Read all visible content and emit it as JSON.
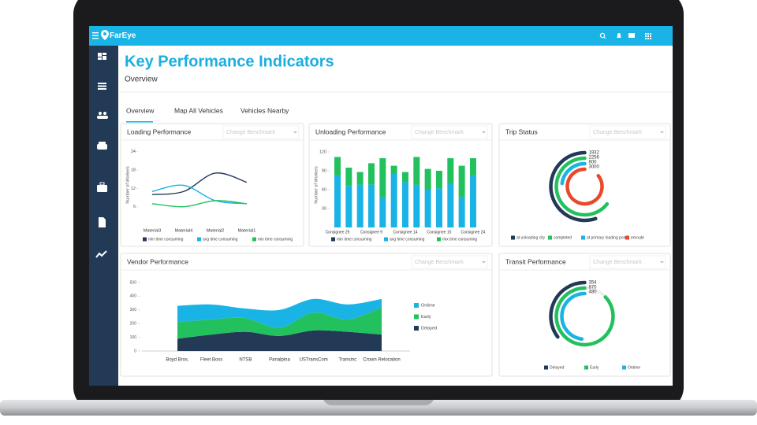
{
  "app": {
    "logo": "FarEye"
  },
  "page": {
    "title": "Key Performance Indicators",
    "subtitle": "Overview"
  },
  "tabs": [
    "Overview",
    "Map All Vehicles",
    "Vehicles Nearby"
  ],
  "chart_data": [
    {
      "type": "line",
      "title": "Loading Performance",
      "benchmark": "Change Benchmark",
      "y_label": "Number of Workers",
      "categories": [
        "Material3",
        "Material4",
        "Material2",
        "Material1"
      ],
      "ylim": [
        0,
        26
      ],
      "yticks": [
        6,
        12,
        18,
        24
      ],
      "series": [
        {
          "name": "min time consuming",
          "color": "#233a57",
          "values": [
            10,
            11,
            17,
            14
          ]
        },
        {
          "name": "avg time consuming",
          "color": "#1ab3e6",
          "values": [
            11,
            13,
            8,
            7
          ]
        },
        {
          "name": "mix time consuming",
          "color": "#22c15e",
          "values": [
            7,
            6,
            8,
            7
          ]
        }
      ]
    },
    {
      "type": "stacked_bar",
      "title": "Unloading Performance",
      "benchmark": "Change Benchmark",
      "y_label": "Number of Workers",
      "categories": [
        "Consignee 29",
        null,
        null,
        "Consignee 9",
        null,
        null,
        "Consignee 14",
        null,
        null,
        "Consignee 15",
        null,
        null,
        "Consignee 24"
      ],
      "ylim": [
        0,
        130
      ],
      "yticks": [
        30,
        60,
        90,
        120
      ],
      "series": [
        {
          "name": "min time consuming",
          "color": "#233a57",
          "values": [
            0,
            0,
            0,
            0,
            0,
            0,
            0,
            0,
            0,
            0,
            0,
            0,
            0
          ]
        },
        {
          "name": "avg time consuming",
          "color": "#1ab3e6",
          "values": [
            82,
            66,
            68,
            68,
            48,
            85,
            72,
            68,
            60,
            62,
            70,
            48,
            82
          ]
        },
        {
          "name": "mix time consuming",
          "color": "#22c15e",
          "values": [
            30,
            29,
            20,
            34,
            62,
            13,
            16,
            44,
            33,
            28,
            40,
            50,
            28
          ]
        }
      ]
    },
    {
      "type": "radial",
      "title": "Trip Status",
      "benchmark": "Change Benchmark",
      "ylim": [
        0,
        3500
      ],
      "categories": [
        "at unloading city",
        "completed",
        "at primary loading point",
        "enroute"
      ],
      "colors": [
        "#233a57",
        "#22c15e",
        "#1ab3e6",
        "#e8492b"
      ],
      "values": [
        1932,
        2256,
        800,
        3000
      ]
    },
    {
      "type": "stacked_area",
      "title": "Vendor Performance",
      "benchmark": "Change Benchmark",
      "categories": [
        "Boyd Bros.",
        "Fleet Boss",
        "NTSB",
        "Panalpina",
        "USTransCom",
        "Transinc",
        "Crown Relocation"
      ],
      "ylim": [
        0,
        500
      ],
      "yticks": [
        0,
        100,
        200,
        300,
        400,
        500
      ],
      "series": [
        {
          "name": "Ontime",
          "color": "#1ab3e6",
          "values": [
            120,
            110,
            70,
            130,
            100,
            110,
            60
          ]
        },
        {
          "name": "Early",
          "color": "#22c15e",
          "values": [
            120,
            110,
            100,
            60,
            130,
            90,
            200
          ]
        },
        {
          "name": "Delayed",
          "color": "#233a57",
          "values": [
            90,
            120,
            140,
            110,
            150,
            140,
            120
          ]
        }
      ]
    },
    {
      "type": "radial",
      "title": "Transit Performance",
      "benchmark": "Change Benchmark",
      "ylim": [
        0,
        1000
      ],
      "categories": [
        "Delayed",
        "Early",
        "Ontime"
      ],
      "colors": [
        "#233a57",
        "#22c15e",
        "#1ab3e6"
      ],
      "values": [
        354,
        870,
        480
      ]
    }
  ]
}
